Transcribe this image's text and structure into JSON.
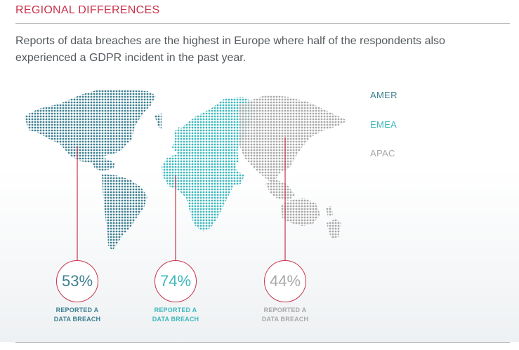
{
  "header": {
    "section_title": "REGIONAL DIFFERENCES",
    "lead_text": "Reports of data breaches are the highest in Europe where half of the respondents also experienced a GDPR incident in the past year."
  },
  "colors": {
    "AMER": "#3d7f90",
    "EMEA": "#3fb8bc",
    "APAC": "#a8a8a8",
    "accent": "#c8344d"
  },
  "legend": [
    {
      "label": "AMER",
      "color": "#3d7f90"
    },
    {
      "label": "EMEA",
      "color": "#3fb8bc"
    },
    {
      "label": "APAC",
      "color": "#a8a8a8"
    }
  ],
  "chart_data": {
    "type": "map",
    "title": "REGIONAL DIFFERENCES",
    "categories": [
      "AMER",
      "EMEA",
      "APAC"
    ],
    "values": [
      53,
      74,
      44
    ],
    "value_labels": [
      "53%",
      "74%",
      "44%"
    ],
    "caption_line1": "REPORTED A",
    "caption_line2": "DATA BREACH",
    "legend_position": "right"
  }
}
